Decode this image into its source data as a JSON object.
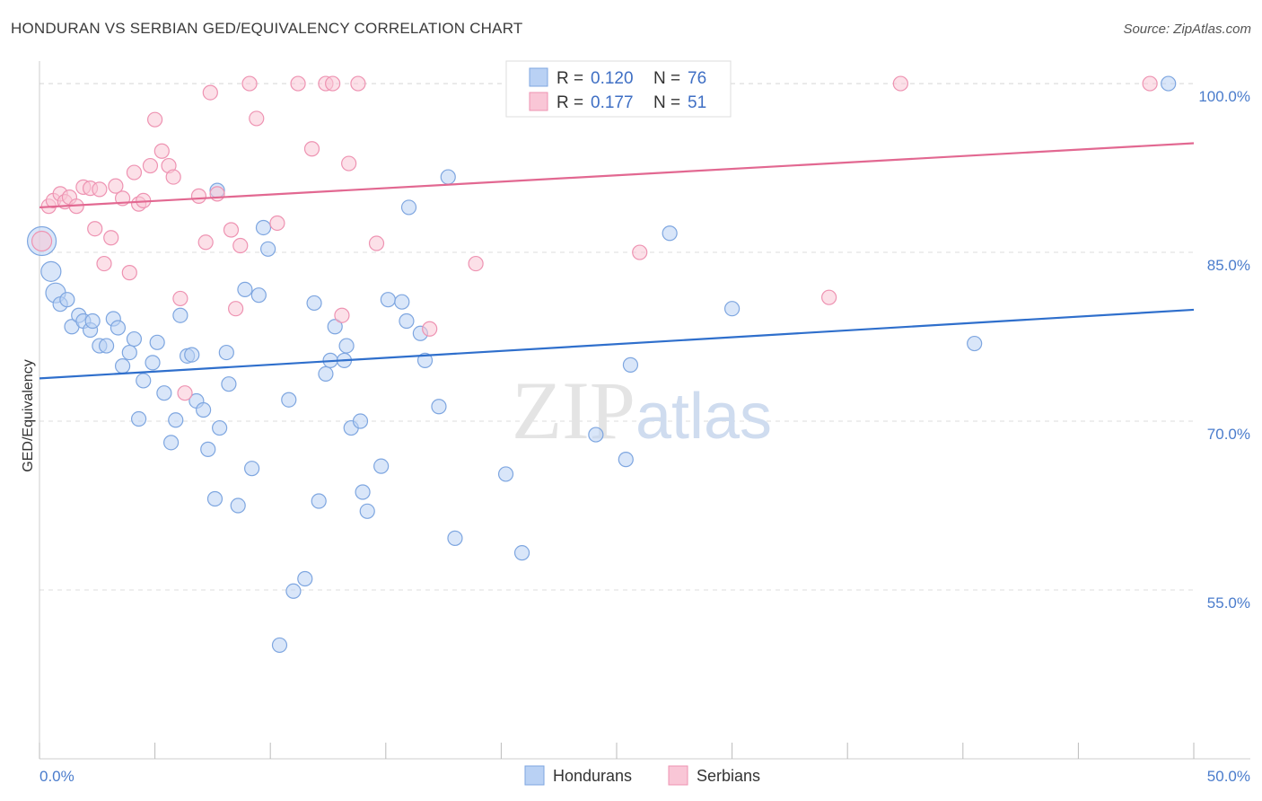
{
  "title": "HONDURAN VS SERBIAN GED/EQUIVALENCY CORRELATION CHART",
  "source": "Source: ZipAtlas.com",
  "watermark": "ZIPatlas",
  "legend": {
    "rows": [
      {
        "r_label": "R =",
        "r_value": "0.120",
        "n_label": "N =",
        "n_value": "76",
        "color": "#b9d1f4",
        "stroke": "#7ea6e0"
      },
      {
        "r_label": "R =",
        "r_value": "0.177",
        "n_label": "N =",
        "n_value": "51",
        "color": "#f9c6d6",
        "stroke": "#ee93b2"
      }
    ]
  },
  "bottom_legend": [
    {
      "label": "Hondurans",
      "color": "#b9d1f4",
      "stroke": "#7ea6e0"
    },
    {
      "label": "Serbians",
      "color": "#f9c6d6",
      "stroke": "#ee93b2"
    }
  ],
  "chart_data": {
    "type": "scatter",
    "title": "HONDURAN VS SERBIAN GED/EQUIVALENCY CORRELATION CHART",
    "xlabel": "",
    "ylabel": "GED/Equivalency",
    "xlim": [
      0,
      50
    ],
    "ylim": [
      40,
      102
    ],
    "x_tick_labels": [
      "0.0%",
      "50.0%"
    ],
    "y_ticks": [
      55,
      70,
      85,
      100
    ],
    "y_tick_labels": [
      "55.0%",
      "70.0%",
      "85.0%",
      "100.0%"
    ],
    "grid": true,
    "legend_position": "top-center",
    "series": [
      {
        "name": "Hondurans",
        "color": "#b9d1f4",
        "stroke": "#7ea6e0",
        "line_color": "#2f6fcc",
        "trend": [
          [
            0,
            73.8
          ],
          [
            50,
            79.9
          ]
        ],
        "points": [
          [
            0.1,
            86.0,
            3
          ],
          [
            0.5,
            83.3,
            2
          ],
          [
            0.7,
            81.4,
            2
          ],
          [
            0.9,
            80.4,
            1
          ],
          [
            1.2,
            80.8,
            1
          ],
          [
            1.4,
            78.4,
            1
          ],
          [
            1.7,
            79.4,
            1
          ],
          [
            1.9,
            78.9,
            1
          ],
          [
            2.2,
            78.1,
            1
          ],
          [
            2.3,
            78.9,
            1
          ],
          [
            2.6,
            76.7,
            1
          ],
          [
            2.9,
            76.7,
            1
          ],
          [
            3.2,
            79.1,
            1
          ],
          [
            3.4,
            78.3,
            1
          ],
          [
            3.6,
            74.9,
            1
          ],
          [
            3.9,
            76.1,
            1
          ],
          [
            4.1,
            77.3,
            1
          ],
          [
            4.3,
            70.2,
            1
          ],
          [
            4.5,
            73.6,
            1
          ],
          [
            4.9,
            75.2,
            1
          ],
          [
            5.1,
            77.0,
            1
          ],
          [
            5.4,
            72.5,
            1
          ],
          [
            5.7,
            68.1,
            1
          ],
          [
            5.9,
            70.1,
            1
          ],
          [
            6.1,
            79.4,
            1
          ],
          [
            6.4,
            75.8,
            1
          ],
          [
            6.6,
            75.9,
            1
          ],
          [
            6.8,
            71.8,
            1
          ],
          [
            7.1,
            71.0,
            1
          ],
          [
            7.3,
            67.5,
            1
          ],
          [
            7.6,
            63.1,
            1
          ],
          [
            7.8,
            69.4,
            1
          ],
          [
            8.1,
            76.1,
            1
          ],
          [
            8.2,
            73.3,
            1
          ],
          [
            8.6,
            62.5,
            1
          ],
          [
            8.9,
            81.7,
            1
          ],
          [
            9.2,
            65.8,
            1
          ],
          [
            9.5,
            81.2,
            1
          ],
          [
            9.7,
            87.2,
            1
          ],
          [
            9.9,
            85.3,
            1
          ],
          [
            10.4,
            50.1,
            1
          ],
          [
            10.8,
            71.9,
            1
          ],
          [
            11.0,
            54.9,
            1
          ],
          [
            11.5,
            56.0,
            1
          ],
          [
            11.9,
            80.5,
            1
          ],
          [
            12.1,
            62.9,
            1
          ],
          [
            12.4,
            74.2,
            1
          ],
          [
            12.6,
            75.4,
            1
          ],
          [
            12.8,
            78.4,
            1
          ],
          [
            13.2,
            75.4,
            1
          ],
          [
            13.3,
            76.7,
            1
          ],
          [
            13.5,
            69.4,
            1
          ],
          [
            13.9,
            70.0,
            1
          ],
          [
            14.0,
            63.7,
            1
          ],
          [
            14.2,
            62.0,
            1
          ],
          [
            14.8,
            66.0,
            1
          ],
          [
            15.1,
            80.8,
            1
          ],
          [
            15.7,
            80.6,
            1
          ],
          [
            15.9,
            78.9,
            1
          ],
          [
            16.0,
            89.0,
            1
          ],
          [
            16.5,
            77.8,
            1
          ],
          [
            16.7,
            75.4,
            1
          ],
          [
            17.3,
            71.3,
            1
          ],
          [
            17.7,
            91.7,
            1
          ],
          [
            18.0,
            59.6,
            1
          ],
          [
            20.2,
            65.3,
            1
          ],
          [
            20.9,
            58.3,
            1
          ],
          [
            24.1,
            68.8,
            1
          ],
          [
            25.4,
            66.6,
            1
          ],
          [
            25.6,
            75.0,
            1
          ],
          [
            27.3,
            86.7,
            1
          ],
          [
            28.0,
            100.0,
            1
          ],
          [
            30.0,
            80.0,
            1
          ],
          [
            40.5,
            76.9,
            1
          ],
          [
            48.9,
            100.0,
            1
          ],
          [
            7.7,
            90.5,
            1
          ]
        ]
      },
      {
        "name": "Serbians",
        "color": "#f9c6d6",
        "stroke": "#ee93b2",
        "line_color": "#e26891",
        "trend": [
          [
            0,
            89.0
          ],
          [
            50,
            94.7
          ]
        ],
        "points": [
          [
            0.1,
            86.0,
            2
          ],
          [
            0.4,
            89.1,
            1
          ],
          [
            0.6,
            89.6,
            1
          ],
          [
            0.9,
            90.2,
            1
          ],
          [
            1.1,
            89.5,
            1
          ],
          [
            1.3,
            89.9,
            1
          ],
          [
            1.6,
            89.1,
            1
          ],
          [
            1.9,
            90.8,
            1
          ],
          [
            2.2,
            90.7,
            1
          ],
          [
            2.4,
            87.1,
            1
          ],
          [
            2.6,
            90.6,
            1
          ],
          [
            2.8,
            84.0,
            1
          ],
          [
            3.1,
            86.3,
            1
          ],
          [
            3.3,
            90.9,
            1
          ],
          [
            3.6,
            89.8,
            1
          ],
          [
            3.9,
            83.2,
            1
          ],
          [
            4.1,
            92.1,
            1
          ],
          [
            4.3,
            89.3,
            1
          ],
          [
            4.5,
            89.6,
            1
          ],
          [
            4.8,
            92.7,
            1
          ],
          [
            5.0,
            96.8,
            1
          ],
          [
            5.3,
            94.0,
            1
          ],
          [
            5.6,
            92.7,
            1
          ],
          [
            5.8,
            91.7,
            1
          ],
          [
            6.1,
            80.9,
            1
          ],
          [
            6.3,
            72.5,
            1
          ],
          [
            6.9,
            90.0,
            1
          ],
          [
            7.2,
            85.9,
            1
          ],
          [
            7.4,
            99.2,
            1
          ],
          [
            7.7,
            90.2,
            1
          ],
          [
            8.3,
            87.0,
            1
          ],
          [
            8.5,
            80.0,
            1
          ],
          [
            8.7,
            85.6,
            1
          ],
          [
            9.1,
            100.0,
            1
          ],
          [
            9.4,
            96.9,
            1
          ],
          [
            10.3,
            87.6,
            1
          ],
          [
            11.2,
            100.0,
            1
          ],
          [
            11.8,
            94.2,
            1
          ],
          [
            12.4,
            100.0,
            1
          ],
          [
            12.7,
            100.0,
            1
          ],
          [
            13.1,
            79.4,
            1
          ],
          [
            13.4,
            92.9,
            1
          ],
          [
            13.8,
            100.0,
            1
          ],
          [
            14.6,
            85.8,
            1
          ],
          [
            16.9,
            78.2,
            1
          ],
          [
            18.9,
            84.0,
            1
          ],
          [
            20.6,
            100.0,
            1
          ],
          [
            26.0,
            85.0,
            1
          ],
          [
            34.2,
            81.0,
            1
          ],
          [
            37.3,
            100.0,
            1
          ],
          [
            48.1,
            100.0,
            1
          ]
        ]
      }
    ]
  }
}
